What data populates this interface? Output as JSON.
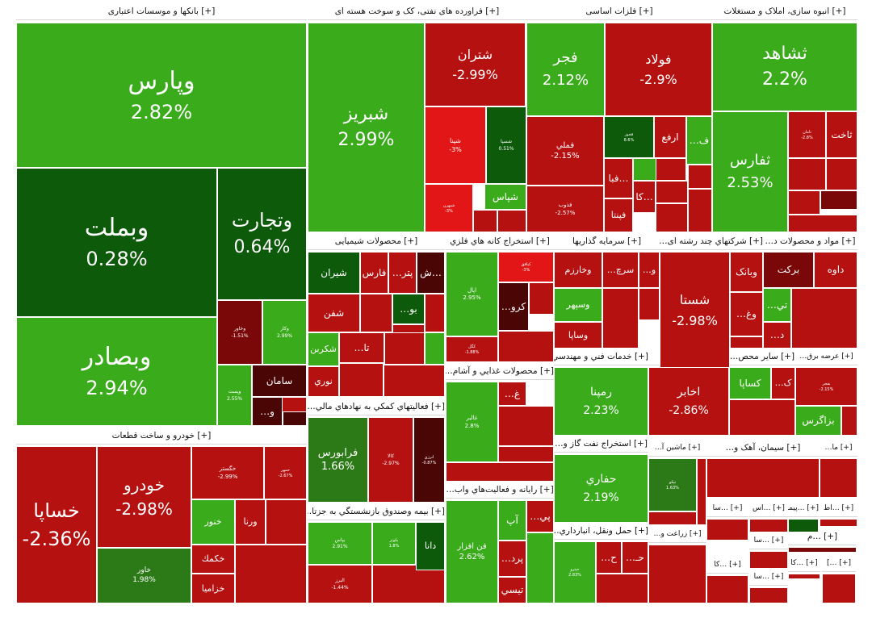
{
  "chart_data": {
    "type": "treemap",
    "title": "",
    "sectors": [
      {
        "name": "[+] بانکها و موسسات اعتباری",
        "stocks": [
          {
            "name": "وپارس",
            "change": "2.82%"
          },
          {
            "name": "وبملت",
            "change": "0.28%"
          },
          {
            "name": "وتجارت",
            "change": "0.64%"
          },
          {
            "name": "وبصادر",
            "change": "2.94%"
          },
          {
            "name": "وخاور",
            "change": "-1.51%"
          },
          {
            "name": "وکار",
            "change": "2.99%"
          },
          {
            "name": "سامان",
            "change": ""
          },
          {
            "name": "وپست",
            "change": "2.55%"
          },
          {
            "name": "…و",
            "change": ""
          }
        ]
      },
      {
        "name": "[+] فراورده های نفتی، کک و سوخت هسته ای",
        "stocks": [
          {
            "name": "شبریز",
            "change": "2.99%"
          },
          {
            "name": "شتران",
            "change": "-2.99%"
          },
          {
            "name": "شپنا",
            "change": "-3%"
          },
          {
            "name": "شسپا",
            "change": "0.51%"
          },
          {
            "name": "شپاس",
            "change": ""
          },
          {
            "name": "شبهرن",
            "change": "-3%"
          }
        ]
      },
      {
        "name": "[+] فلزات اساسی",
        "stocks": [
          {
            "name": "فجر",
            "change": "2.12%"
          },
          {
            "name": "فولاد",
            "change": "-2.9%"
          },
          {
            "name": "فملي",
            "change": "-2.15%"
          },
          {
            "name": "فخوز",
            "change": "8.6%"
          },
          {
            "name": "ارفع",
            "change": ""
          },
          {
            "name": "…ف",
            "change": ""
          },
          {
            "name": "فذوب",
            "change": "-2.57%"
          },
          {
            "name": "فبا…",
            "change": ""
          },
          {
            "name": "كا…",
            "change": ""
          },
          {
            "name": "فپنتا",
            "change": ""
          }
        ]
      },
      {
        "name": "[+] انبوه سازی، املاک و مستغلات",
        "stocks": [
          {
            "name": "ثشاهد",
            "change": "2.2%"
          },
          {
            "name": "ثفارس",
            "change": "2.53%"
          },
          {
            "name": "ثامان",
            "change": "-2.8%"
          },
          {
            "name": "ثاخت",
            "change": ""
          }
        ]
      },
      {
        "name": "[+] خودرو و ساخت قطعات",
        "stocks": [
          {
            "name": "خساپا",
            "change": "-2.36%"
          },
          {
            "name": "خودرو",
            "change": "-2.98%"
          },
          {
            "name": "خگستر",
            "change": "-2.99%"
          },
          {
            "name": "خمهر",
            "change": "-2.67%"
          },
          {
            "name": "خنور",
            "change": ""
          },
          {
            "name": "ورنا",
            "change": ""
          },
          {
            "name": "خاور",
            "change": "1.98%"
          },
          {
            "name": "خكمك",
            "change": ""
          },
          {
            "name": "خزاميا",
            "change": ""
          }
        ]
      },
      {
        "name": "[+] محصولات شیمیایی",
        "stocks": [
          {
            "name": "شیران",
            "change": ""
          },
          {
            "name": "فارس",
            "change": ""
          },
          {
            "name": "…پتر",
            "change": ""
          },
          {
            "name": "ش…",
            "change": ""
          },
          {
            "name": "شفن",
            "change": ""
          },
          {
            "name": "…بو",
            "change": ""
          },
          {
            "name": "…تا",
            "change": ""
          },
          {
            "name": "شكربن",
            "change": ""
          },
          {
            "name": "نوري",
            "change": ""
          }
        ]
      },
      {
        "name": "[+] استخراج کانه هاي فلزي",
        "stocks": [
          {
            "name": "کبافق",
            "change": "-3%"
          },
          {
            "name": "اپال",
            "change": "2.95%"
          },
          {
            "name": "…کرو",
            "change": ""
          },
          {
            "name": "کگل",
            "change": "-1.88%"
          }
        ]
      },
      {
        "name": "[+] سرمايه گذاريها",
        "stocks": [
          {
            "name": "…سرچ",
            "change": ""
          },
          {
            "name": "…و",
            "change": ""
          },
          {
            "name": "وخارزم",
            "change": ""
          },
          {
            "name": "وسپهر",
            "change": ""
          },
          {
            "name": "وساپا",
            "change": ""
          }
        ]
      },
      {
        "name": "[+] شرکتهاي چند رشته ای…",
        "stocks": [
          {
            "name": "شستا",
            "change": "-2.98%"
          },
          {
            "name": "وبانک",
            "change": ""
          },
          {
            "name": "…وغ",
            "change": ""
          }
        ]
      },
      {
        "name": "[+] مواد و محصولات د…",
        "stocks": [
          {
            "name": "برکت",
            "change": ""
          },
          {
            "name": "داوه",
            "change": ""
          },
          {
            "name": "…تي",
            "change": ""
          },
          {
            "name": "…د",
            "change": ""
          }
        ]
      },
      {
        "name": "[+] فعاليتهاي کمکي به نهادهاي مالي…",
        "stocks": [
          {
            "name": "فرابورس",
            "change": "1.66%"
          },
          {
            "name": "کالا",
            "change": "-2.97%"
          },
          {
            "name": "انرژي",
            "change": "-0.87%"
          }
        ]
      },
      {
        "name": "[+] محصولات غذايي و آشام…",
        "stocks": [
          {
            "name": "غالبر",
            "change": "2.8%"
          },
          {
            "name": "…غ",
            "change": ""
          }
        ]
      },
      {
        "name": "[+] خدمات فني و مهندسي",
        "stocks": [
          {
            "name": "رمپنا",
            "change": "2.23%"
          }
        ]
      },
      {
        "name": "[+] مخابرات",
        "stocks": [
          {
            "name": "اخابر",
            "change": "-2.86%"
          }
        ]
      },
      {
        "name": "[+] ساير محص…",
        "stocks": [
          {
            "name": "كساپا",
            "change": ""
          },
          {
            "name": "…ک",
            "change": ""
          }
        ]
      },
      {
        "name": "[+] عرضه برق…",
        "stocks": [
          {
            "name": "بفجر",
            "change": "-2.15%"
          },
          {
            "name": "بزاگرس",
            "change": ""
          }
        ]
      },
      {
        "name": "[+] بيمه وصندوق بازنشستگي به جزتا…",
        "stocks": [
          {
            "name": "بپاس",
            "change": "2.91%"
          },
          {
            "name": "بکوثر",
            "change": "1.8%"
          },
          {
            "name": "دانا",
            "change": ""
          },
          {
            "name": "البرز",
            "change": "-1.44%"
          }
        ]
      },
      {
        "name": "[+] رايانه و فعاليت‌هاي واب…",
        "stocks": [
          {
            "name": "فن افزار",
            "change": "2.62%"
          },
          {
            "name": "آپ",
            "change": ""
          },
          {
            "name": "…پي",
            "change": ""
          },
          {
            "name": "…پرد",
            "change": ""
          },
          {
            "name": "تيسي",
            "change": ""
          }
        ]
      },
      {
        "name": "[+] استخراج نفت گاز و…",
        "stocks": [
          {
            "name": "حفاري",
            "change": "2.19%"
          }
        ]
      },
      {
        "name": "[+] ماشين آ…",
        "stocks": [
          {
            "name": "تپکو",
            "change": "1.63%"
          }
        ]
      },
      {
        "name": "[+] حمل ونقل، انبارداري…",
        "stocks": [
          {
            "name": "حپترو",
            "change": "2.83%"
          },
          {
            "name": "…ح",
            "change": ""
          },
          {
            "name": "…حـ",
            "change": ""
          }
        ]
      },
      {
        "name": "[+] زراعت و…",
        "stocks": []
      },
      {
        "name": "[+] سيمان، آهک و…",
        "stocks": []
      },
      {
        "name": "[+] ما…",
        "stocks": []
      },
      {
        "name": "[+] …اط",
        "stocks": []
      },
      {
        "name": "[+] …سا",
        "stocks": []
      },
      {
        "name": "[+] …اس",
        "stocks": []
      },
      {
        "name": "[+] …پيما",
        "stocks": []
      },
      {
        "name": "[+] …سا",
        "stocks": []
      },
      {
        "name": "[+] …م",
        "stocks": []
      },
      {
        "name": "[+] …كا",
        "stocks": []
      },
      {
        "name": "[+] …سا",
        "stocks": []
      },
      {
        "name": "[+] …كا",
        "stocks": []
      },
      {
        "name": "[+] …]",
        "stocks": []
      }
    ]
  }
}
